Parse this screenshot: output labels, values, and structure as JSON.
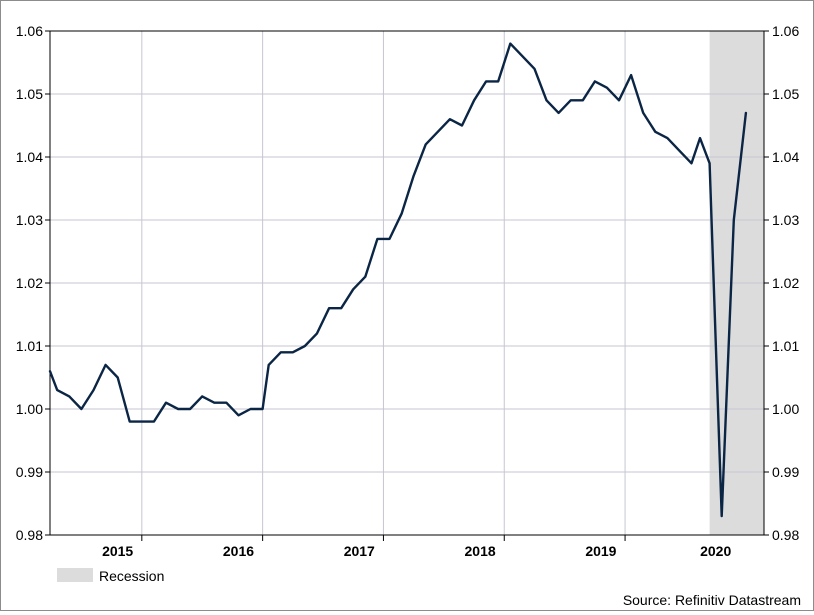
{
  "chart_data": {
    "type": "line",
    "title": "",
    "xlabel": "",
    "ylabel": "",
    "ylim": [
      0.98,
      1.06
    ],
    "y_ticks": [
      "0.98",
      "0.99",
      "1.00",
      "1.01",
      "1.02",
      "1.03",
      "1.04",
      "1.05",
      "1.06"
    ],
    "x_year_labels": [
      {
        "label": "2015",
        "t": 2015.3
      },
      {
        "label": "2016",
        "t": 2016.3
      },
      {
        "label": "2017",
        "t": 2017.3
      },
      {
        "label": "2018",
        "t": 2018.3
      },
      {
        "label": "2019",
        "t": 2019.3
      },
      {
        "label": "2020",
        "t": 2020.25
      }
    ],
    "x_year_dividers": [
      2015.5,
      2016.5,
      2017.5,
      2018.5,
      2019.5
    ],
    "x_range": [
      2014.74,
      2020.65
    ],
    "grid": true,
    "line_color": "#0b2545",
    "recession": {
      "start": 2020.2,
      "end": 2020.67,
      "color": "#dcdcdc"
    },
    "legend": {
      "label": "Recession",
      "placement": "bottom-left"
    },
    "source": "Source: Refinitiv Datastream",
    "series": [
      {
        "name": "",
        "points": [
          [
            2014.74,
            1.006
          ],
          [
            2014.8,
            1.003
          ],
          [
            2014.9,
            1.002
          ],
          [
            2015.0,
            1.0
          ],
          [
            2015.1,
            1.003
          ],
          [
            2015.2,
            1.007
          ],
          [
            2015.3,
            1.005
          ],
          [
            2015.4,
            0.998
          ],
          [
            2015.5,
            0.998
          ],
          [
            2015.6,
            0.998
          ],
          [
            2015.7,
            1.001
          ],
          [
            2015.8,
            1.0
          ],
          [
            2015.9,
            1.0
          ],
          [
            2016.0,
            1.002
          ],
          [
            2016.1,
            1.001
          ],
          [
            2016.2,
            1.001
          ],
          [
            2016.3,
            0.999
          ],
          [
            2016.4,
            1.0
          ],
          [
            2016.5,
            1.0
          ],
          [
            2016.55,
            1.007
          ],
          [
            2016.65,
            1.009
          ],
          [
            2016.75,
            1.009
          ],
          [
            2016.85,
            1.01
          ],
          [
            2016.95,
            1.012
          ],
          [
            2017.05,
            1.016
          ],
          [
            2017.15,
            1.016
          ],
          [
            2017.25,
            1.019
          ],
          [
            2017.35,
            1.021
          ],
          [
            2017.45,
            1.027
          ],
          [
            2017.55,
            1.027
          ],
          [
            2017.65,
            1.031
          ],
          [
            2017.75,
            1.037
          ],
          [
            2017.85,
            1.042
          ],
          [
            2017.95,
            1.044
          ],
          [
            2018.05,
            1.046
          ],
          [
            2018.15,
            1.045
          ],
          [
            2018.25,
            1.049
          ],
          [
            2018.35,
            1.052
          ],
          [
            2018.45,
            1.052
          ],
          [
            2018.55,
            1.058
          ],
          [
            2018.65,
            1.056
          ],
          [
            2018.75,
            1.054
          ],
          [
            2018.85,
            1.049
          ],
          [
            2018.95,
            1.047
          ],
          [
            2019.05,
            1.049
          ],
          [
            2019.15,
            1.049
          ],
          [
            2019.25,
            1.052
          ],
          [
            2019.35,
            1.051
          ],
          [
            2019.45,
            1.049
          ],
          [
            2019.55,
            1.053
          ],
          [
            2019.65,
            1.047
          ],
          [
            2019.75,
            1.044
          ],
          [
            2019.85,
            1.043
          ],
          [
            2019.95,
            1.041
          ],
          [
            2020.05,
            1.039
          ],
          [
            2020.12,
            1.043
          ],
          [
            2020.2,
            1.039
          ],
          [
            2020.3,
            0.983
          ],
          [
            2020.4,
            1.03
          ],
          [
            2020.5,
            1.047
          ]
        ]
      }
    ]
  }
}
